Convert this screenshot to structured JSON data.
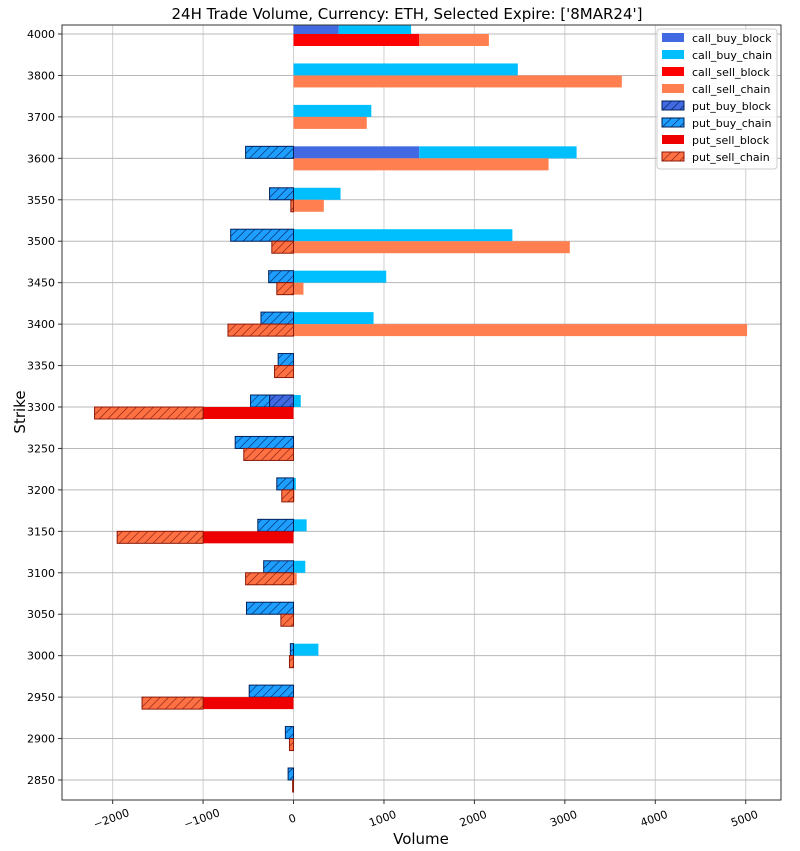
{
  "chart_data": {
    "type": "bar",
    "orientation": "horizontal",
    "stacked": true,
    "title": "24H Trade Volume, Currency: ETH, Selected Expire: ['8MAR24']",
    "xlabel": "Volume",
    "ylabel": "Strike",
    "xlim": [
      -2560,
      5390
    ],
    "xticks": [
      -2000,
      -1000,
      0,
      1000,
      2000,
      3000,
      4000,
      5000
    ],
    "xtick_labels": [
      "−2000",
      "−1000",
      "0",
      "1000",
      "2000",
      "3000",
      "4000",
      "5000"
    ],
    "grid": true,
    "legend_position": "top-right",
    "categories": [
      "4000",
      "3800",
      "3700",
      "3600",
      "3550",
      "3500",
      "3450",
      "3400",
      "3350",
      "3300",
      "3250",
      "3200",
      "3150",
      "3100",
      "3050",
      "3000",
      "2950",
      "2900",
      "2850"
    ],
    "series": [
      {
        "name": "call_buy_block",
        "group": "buy",
        "color": "#4169e1",
        "hatch": false,
        "values": [
          500,
          0,
          0,
          1390,
          0,
          0,
          0,
          0,
          0,
          0,
          0,
          0,
          0,
          0,
          0,
          0,
          0,
          0,
          0
        ]
      },
      {
        "name": "call_buy_chain",
        "group": "buy",
        "color": "#00bfff",
        "hatch": false,
        "values": [
          800,
          2480,
          860,
          1740,
          520,
          2420,
          1025,
          885,
          0,
          80,
          0,
          25,
          145,
          130,
          0,
          275,
          0,
          0,
          0
        ]
      },
      {
        "name": "call_sell_block",
        "group": "sell",
        "color": "#ff0000",
        "hatch": false,
        "values": [
          1390,
          0,
          0,
          0,
          0,
          0,
          0,
          0,
          0,
          0,
          0,
          0,
          0,
          0,
          0,
          0,
          0,
          0,
          0
        ]
      },
      {
        "name": "call_sell_chain",
        "group": "sell",
        "color": "#ff7f50",
        "hatch": false,
        "values": [
          770,
          3630,
          810,
          2820,
          335,
          3055,
          110,
          5015,
          0,
          0,
          0,
          10,
          0,
          35,
          0,
          0,
          0,
          0,
          0
        ]
      },
      {
        "name": "put_buy_block",
        "group": "buy",
        "color": "#4169e1",
        "hatch": true,
        "values": [
          0,
          0,
          0,
          0,
          0,
          0,
          0,
          0,
          0,
          -265,
          0,
          0,
          0,
          0,
          0,
          0,
          0,
          0,
          0
        ]
      },
      {
        "name": "put_buy_chain",
        "group": "buy",
        "color": "#1e9fff",
        "hatch": true,
        "values": [
          0,
          0,
          0,
          -530,
          -265,
          -695,
          -275,
          -360,
          -170,
          -210,
          -645,
          -185,
          -395,
          -330,
          -520,
          -35,
          -490,
          -90,
          -60
        ]
      },
      {
        "name": "put_sell_block",
        "group": "sell",
        "color": "#ee0000",
        "hatch": false,
        "values": [
          0,
          0,
          0,
          0,
          0,
          0,
          0,
          0,
          0,
          -1000,
          0,
          0,
          -1000,
          0,
          0,
          0,
          -1000,
          0,
          0
        ]
      },
      {
        "name": "put_sell_chain",
        "group": "sell",
        "color": "#ff7043",
        "hatch": true,
        "values": [
          0,
          0,
          0,
          0,
          -30,
          -240,
          -185,
          -725,
          -210,
          -1200,
          -550,
          -130,
          -950,
          -530,
          -140,
          -45,
          -675,
          -45,
          -10
        ]
      }
    ]
  }
}
